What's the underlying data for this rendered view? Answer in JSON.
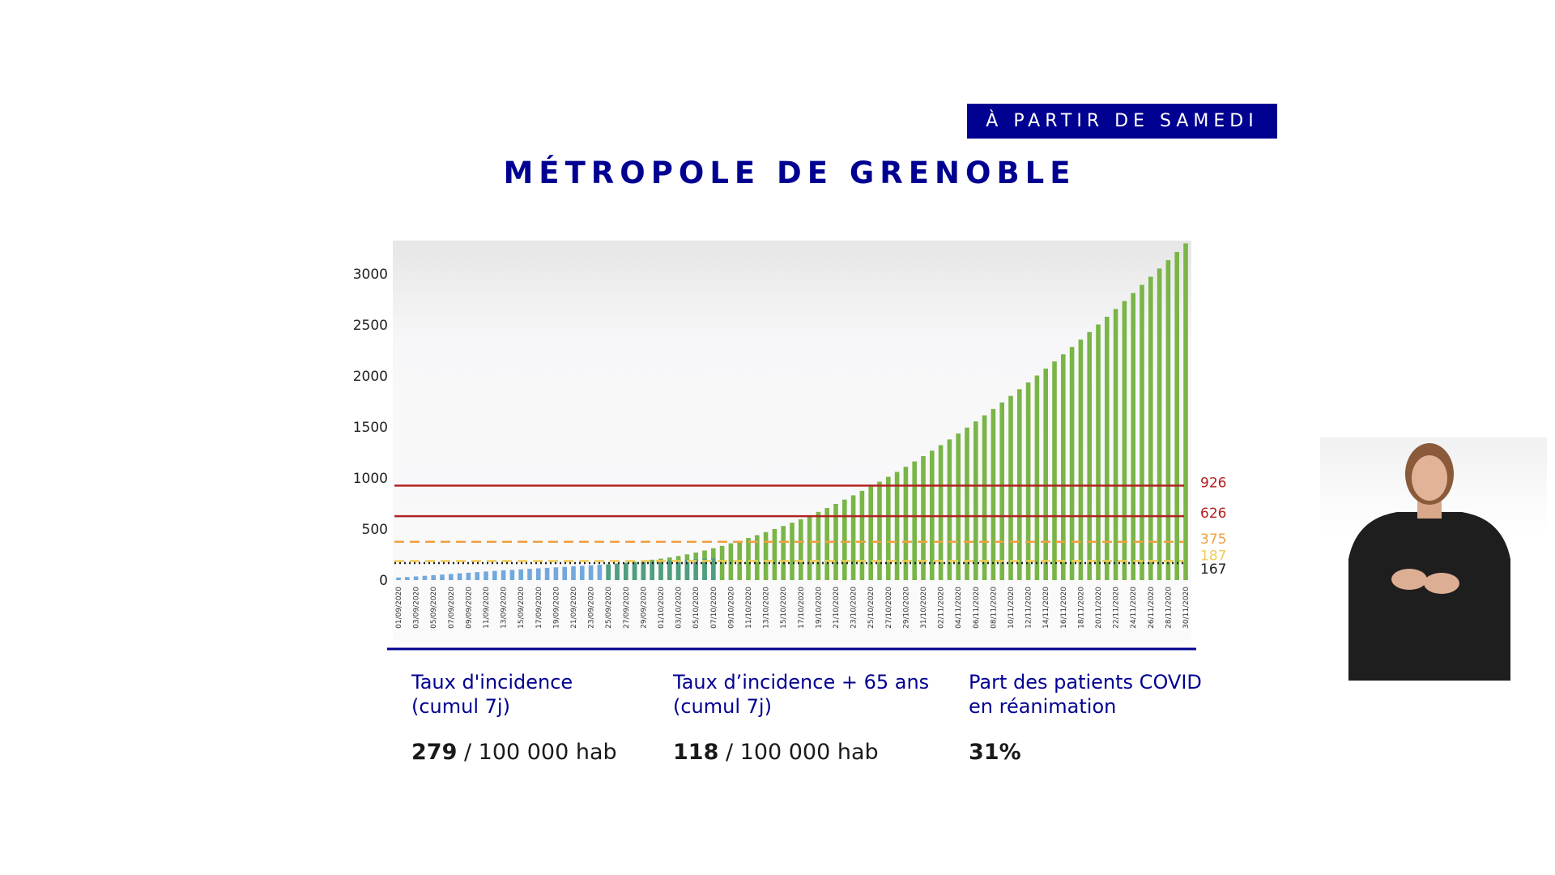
{
  "header": {
    "badge": "À PARTIR DE SAMEDI",
    "title": "MÉTROPOLE DE GRENOBLE"
  },
  "colors": {
    "accent_navy": "#000091",
    "bar_blue": "#72a8dd",
    "bar_teal": "#4e9e80",
    "bar_green": "#7ab547",
    "line_dark_red": "#b22222",
    "line_orange": "#f0a040",
    "line_yellow": "#f2cb52",
    "line_black": "#222222"
  },
  "chart_data": {
    "type": "bar",
    "ylim": [
      0,
      3200
    ],
    "yticks": [
      0,
      500,
      1000,
      1500,
      2000,
      2500,
      3000
    ],
    "grid": false,
    "x_tick_labels": [
      "01/09/2020",
      "03/09/2020",
      "05/09/2020",
      "07/09/2020",
      "09/09/2020",
      "11/09/2020",
      "13/09/2020",
      "15/09/2020",
      "17/09/2020",
      "19/09/2020",
      "21/09/2020",
      "23/09/2020",
      "25/09/2020",
      "27/09/2020",
      "29/09/2020",
      "01/10/2020",
      "03/10/2020",
      "05/10/2020",
      "07/10/2020",
      "09/10/2020",
      "11/10/2020",
      "13/10/2020",
      "15/10/2020",
      "17/10/2020",
      "19/10/2020",
      "21/10/2020",
      "23/10/2020",
      "25/10/2020",
      "27/10/2020",
      "29/10/2020",
      "31/10/2020",
      "02/11/2020",
      "04/11/2020",
      "06/11/2020",
      "08/11/2020",
      "10/11/2020",
      "12/11/2020",
      "14/11/2020",
      "16/11/2020",
      "18/11/2020",
      "20/11/2020",
      "22/11/2020",
      "24/11/2020",
      "26/11/2020",
      "28/11/2020",
      "30/11/2020"
    ],
    "series": [
      {
        "segment": "blue",
        "x": [
          "01/09/2020",
          "02/09/2020",
          "03/09/2020",
          "04/09/2020",
          "05/09/2020",
          "06/09/2020",
          "07/09/2020",
          "08/09/2020",
          "09/09/2020",
          "10/09/2020",
          "11/09/2020",
          "12/09/2020",
          "13/09/2020",
          "14/09/2020",
          "15/09/2020",
          "16/09/2020",
          "17/09/2020",
          "18/09/2020",
          "19/09/2020",
          "20/09/2020",
          "21/09/2020",
          "22/09/2020",
          "23/09/2020",
          "24/09/2020"
        ],
        "values": [
          25,
          30,
          36,
          42,
          48,
          54,
          60,
          66,
          72,
          78,
          84,
          90,
          96,
          100,
          105,
          110,
          115,
          120,
          125,
          130,
          135,
          140,
          145,
          150
        ]
      },
      {
        "segment": "teal",
        "x": [
          "25/09/2020",
          "26/09/2020",
          "27/09/2020",
          "28/09/2020",
          "29/09/2020",
          "30/09/2020",
          "01/10/2020",
          "02/10/2020",
          "03/10/2020",
          "04/10/2020",
          "05/10/2020",
          "06/10/2020",
          "07/10/2020"
        ],
        "values": [
          155,
          160,
          165,
          170,
          175,
          180,
          185,
          190,
          195,
          200,
          205,
          210,
          215
        ]
      },
      {
        "segment": "green",
        "x": [
          "25/09/2020",
          "26/09/2020",
          "27/09/2020",
          "28/09/2020",
          "29/09/2020",
          "30/09/2020",
          "01/10/2020",
          "02/10/2020",
          "03/10/2020",
          "04/10/2020",
          "05/10/2020",
          "06/10/2020",
          "07/10/2020",
          "08/10/2020",
          "09/10/2020",
          "10/10/2020",
          "11/10/2020",
          "12/10/2020",
          "13/10/2020",
          "14/10/2020",
          "15/10/2020",
          "16/10/2020",
          "17/10/2020",
          "18/10/2020",
          "19/10/2020",
          "20/10/2020",
          "21/10/2020",
          "22/10/2020",
          "23/10/2020",
          "24/10/2020",
          "25/10/2020",
          "26/10/2020",
          "27/10/2020",
          "28/10/2020",
          "29/10/2020",
          "30/10/2020",
          "31/10/2020",
          "01/11/2020",
          "02/11/2020",
          "03/11/2020",
          "04/11/2020",
          "05/11/2020",
          "06/11/2020",
          "07/11/2020",
          "08/11/2020",
          "09/11/2020",
          "10/11/2020",
          "11/11/2020",
          "12/11/2020",
          "13/11/2020",
          "14/11/2020",
          "15/11/2020",
          "16/11/2020",
          "17/11/2020",
          "18/11/2020",
          "19/11/2020",
          "20/11/2020",
          "21/11/2020",
          "22/11/2020",
          "23/11/2020",
          "24/11/2020",
          "25/11/2020",
          "26/11/2020",
          "27/11/2020",
          "28/11/2020",
          "29/11/2020",
          "30/11/2020"
        ],
        "values": [
          155,
          162,
          170,
          180,
          190,
          200,
          210,
          222,
          236,
          252,
          270,
          290,
          312,
          335,
          360,
          385,
          412,
          440,
          470,
          500,
          530,
          562,
          595,
          630,
          668,
          706,
          746,
          788,
          830,
          874,
          918,
          964,
          1012,
          1060,
          1110,
          1162,
          1214,
          1268,
          1322,
          1378,
          1436,
          1494,
          1554,
          1614,
          1676,
          1740,
          1804,
          1870,
          1936,
          2004,
          2072,
          2142,
          2212,
          2284,
          2356,
          2430,
          2504,
          2580,
          2656,
          2734,
          2812,
          2892,
          2972,
          3052,
          3134,
          3214,
          3298
        ]
      }
    ],
    "thresholds": [
      {
        "value": 926,
        "label": "926",
        "style": "solid",
        "color": "#b22222"
      },
      {
        "value": 626,
        "label": "626",
        "style": "solid",
        "color": "#b22222"
      },
      {
        "value": 375,
        "label": "375",
        "style": "dashed",
        "color": "#f0a040"
      },
      {
        "value": 187,
        "label": "187",
        "style": "dashed",
        "color": "#f2cb52"
      },
      {
        "value": 167,
        "label": "167",
        "style": "dotted",
        "color": "#222222"
      }
    ]
  },
  "kpis": [
    {
      "label": "Taux d'incidence\n(cumul 7j)",
      "value_bold": "279",
      "value_rest": " / 100 000 hab"
    },
    {
      "label": "Taux d’incidence + 65 ans\n(cumul 7j)",
      "value_bold": "118",
      "value_rest": " / 100 000 hab"
    },
    {
      "label": "Part des patients COVID\nen réanimation",
      "value_bold": "31%",
      "value_rest": ""
    }
  ]
}
